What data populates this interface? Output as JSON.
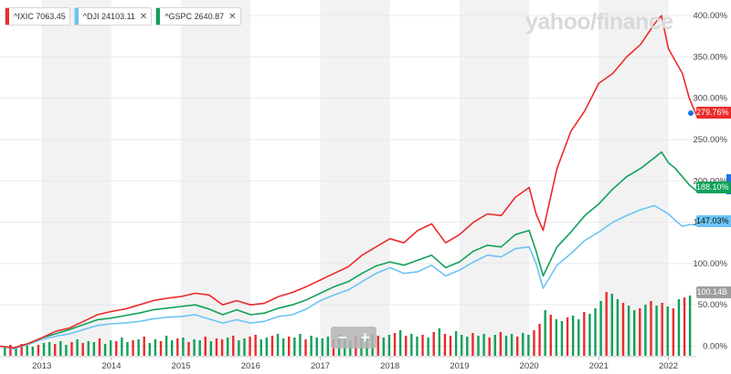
{
  "legend": [
    {
      "symbol": "^IXIC",
      "value": "7063.45",
      "color": "#ec2b2b",
      "close_icon": "close-icon"
    },
    {
      "symbol": "^DJI",
      "value": "24103.11",
      "color": "#6cc4f5",
      "close_icon": "close-icon"
    },
    {
      "symbol": "^GSPC",
      "value": "2640.87",
      "color": "#0fa15a",
      "close_icon": "close-icon"
    }
  ],
  "brand": "yahoo/finance",
  "zoom": {
    "minus": "−",
    "plus": "+"
  },
  "colors": {
    "ixic": "#ec2b2b",
    "dji": "#6cc4f5",
    "gspc": "#0fa15a",
    "vol_up": "#0fa15a",
    "vol_down": "#ec2b2b",
    "band": "#f2f2f2",
    "grid": "#e9e9e9"
  },
  "flags": {
    "ixic": {
      "text": "279.76%",
      "bg": "#ec2b2b",
      "fg": "#ffffff"
    },
    "gspc": {
      "text": "188.10%",
      "bg": "#0fa15a",
      "fg": "#ffffff"
    },
    "dji": {
      "text": "147.03%",
      "bg": "#6cc4f5",
      "fg": "#111111"
    },
    "volume": {
      "text": "100.14B",
      "bg": "#9e9e9e",
      "fg": "#ffffff"
    }
  },
  "chart_data": {
    "type": "line",
    "title": "",
    "y_unit": "% change",
    "ylim": [
      -5,
      410
    ],
    "y_ticks": [
      0,
      50,
      100,
      150,
      200,
      250,
      300,
      350,
      400
    ],
    "y_tick_labels": [
      "0.00%",
      "50.00%",
      "100.00%",
      "150.00%",
      "200.00%",
      "250.00%",
      "300.00%",
      "350.00%",
      "400.00%"
    ],
    "x_tick_labels": [
      "2013",
      "2014",
      "2015",
      "2016",
      "2017",
      "2018",
      "2019",
      "2020",
      "2021",
      "2022"
    ],
    "x_tick_years": [
      2013,
      2014,
      2015,
      2016,
      2017,
      2018,
      2019,
      2020,
      2021,
      2022
    ],
    "xlim": [
      2012.4,
      2022.4
    ],
    "shaded_year_bands": true,
    "grid": true,
    "series": [
      {
        "name": "^IXIC",
        "x": [
          2012.4,
          2012.6,
          2012.8,
          2013.0,
          2013.2,
          2013.4,
          2013.6,
          2013.8,
          2014.0,
          2014.2,
          2014.4,
          2014.6,
          2014.8,
          2015.0,
          2015.2,
          2015.4,
          2015.6,
          2015.8,
          2016.0,
          2016.2,
          2016.4,
          2016.6,
          2016.8,
          2017.0,
          2017.2,
          2017.4,
          2017.6,
          2017.8,
          2018.0,
          2018.2,
          2018.4,
          2018.6,
          2018.8,
          2019.0,
          2019.2,
          2019.4,
          2019.6,
          2019.8,
          2020.0,
          2020.1,
          2020.2,
          2020.4,
          2020.6,
          2020.8,
          2021.0,
          2021.2,
          2021.4,
          2021.6,
          2021.8,
          2021.9,
          2022.0,
          2022.1,
          2022.2,
          2022.3,
          2022.4
        ],
        "values": [
          0,
          -2,
          3,
          10,
          18,
          22,
          30,
          38,
          42,
          45,
          50,
          55,
          58,
          60,
          64,
          62,
          50,
          55,
          50,
          52,
          60,
          65,
          72,
          80,
          88,
          96,
          110,
          120,
          130,
          125,
          140,
          148,
          125,
          135,
          150,
          160,
          158,
          180,
          192,
          160,
          140,
          215,
          260,
          285,
          318,
          330,
          350,
          365,
          390,
          400,
          360,
          345,
          330,
          300,
          280
        ]
      },
      {
        "name": "^DJI",
        "x": [
          2012.4,
          2012.6,
          2012.8,
          2013.0,
          2013.2,
          2013.4,
          2013.6,
          2013.8,
          2014.0,
          2014.2,
          2014.4,
          2014.6,
          2014.8,
          2015.0,
          2015.2,
          2015.4,
          2015.6,
          2015.8,
          2016.0,
          2016.2,
          2016.4,
          2016.6,
          2016.8,
          2017.0,
          2017.2,
          2017.4,
          2017.6,
          2017.8,
          2018.0,
          2018.2,
          2018.4,
          2018.6,
          2018.8,
          2019.0,
          2019.2,
          2019.4,
          2019.6,
          2019.8,
          2020.0,
          2020.1,
          2020.2,
          2020.4,
          2020.6,
          2020.8,
          2021.0,
          2021.2,
          2021.4,
          2021.6,
          2021.8,
          2021.9,
          2022.0,
          2022.1,
          2022.2,
          2022.3,
          2022.4
        ],
        "values": [
          0,
          -3,
          2,
          8,
          12,
          15,
          20,
          25,
          27,
          28,
          30,
          33,
          35,
          36,
          38,
          33,
          28,
          32,
          28,
          30,
          36,
          38,
          45,
          55,
          62,
          68,
          78,
          88,
          95,
          88,
          90,
          98,
          85,
          92,
          102,
          110,
          108,
          118,
          120,
          100,
          70,
          98,
          112,
          128,
          138,
          150,
          158,
          165,
          170,
          165,
          160,
          152,
          145,
          147,
          147
        ]
      },
      {
        "name": "^GSPC",
        "x": [
          2012.4,
          2012.6,
          2012.8,
          2013.0,
          2013.2,
          2013.4,
          2013.6,
          2013.8,
          2014.0,
          2014.2,
          2014.4,
          2014.6,
          2014.8,
          2015.0,
          2015.2,
          2015.4,
          2015.6,
          2015.8,
          2016.0,
          2016.2,
          2016.4,
          2016.6,
          2016.8,
          2017.0,
          2017.2,
          2017.4,
          2017.6,
          2017.8,
          2018.0,
          2018.2,
          2018.4,
          2018.6,
          2018.8,
          2019.0,
          2019.2,
          2019.4,
          2019.6,
          2019.8,
          2020.0,
          2020.1,
          2020.2,
          2020.4,
          2020.6,
          2020.8,
          2021.0,
          2021.2,
          2021.4,
          2021.6,
          2021.8,
          2021.9,
          2022.0,
          2022.1,
          2022.2,
          2022.3,
          2022.4
        ],
        "values": [
          0,
          -2,
          3,
          10,
          15,
          20,
          26,
          32,
          34,
          37,
          40,
          44,
          46,
          48,
          50,
          45,
          38,
          44,
          38,
          40,
          46,
          50,
          56,
          64,
          72,
          78,
          88,
          97,
          102,
          98,
          104,
          110,
          95,
          102,
          115,
          122,
          120,
          135,
          140,
          115,
          85,
          120,
          138,
          158,
          172,
          190,
          205,
          215,
          228,
          235,
          222,
          215,
          205,
          195,
          188
        ]
      }
    ],
    "volume": {
      "name": "Volume",
      "x": [
        2012.47,
        2012.55,
        2012.63,
        2012.71,
        2012.79,
        2012.87,
        2012.95,
        2013.03,
        2013.11,
        2013.19,
        2013.27,
        2013.35,
        2013.43,
        2013.51,
        2013.59,
        2013.67,
        2013.75,
        2013.83,
        2013.91,
        2013.99,
        2014.07,
        2014.15,
        2014.23,
        2014.31,
        2014.39,
        2014.47,
        2014.55,
        2014.63,
        2014.71,
        2014.79,
        2014.87,
        2014.95,
        2015.03,
        2015.11,
        2015.19,
        2015.27,
        2015.35,
        2015.43,
        2015.51,
        2015.59,
        2015.67,
        2015.75,
        2015.83,
        2015.91,
        2015.99,
        2016.07,
        2016.15,
        2016.23,
        2016.31,
        2016.39,
        2016.47,
        2016.55,
        2016.63,
        2016.71,
        2016.79,
        2016.87,
        2016.95,
        2017.03,
        2017.11,
        2017.19,
        2017.27,
        2017.35,
        2017.43,
        2017.51,
        2017.59,
        2017.67,
        2017.75,
        2017.83,
        2017.91,
        2017.99,
        2018.07,
        2018.15,
        2018.23,
        2018.31,
        2018.39,
        2018.47,
        2018.55,
        2018.63,
        2018.71,
        2018.79,
        2018.87,
        2018.95,
        2019.03,
        2019.11,
        2019.19,
        2019.27,
        2019.35,
        2019.43,
        2019.51,
        2019.59,
        2019.67,
        2019.75,
        2019.83,
        2019.91,
        2019.99,
        2020.07,
        2020.15,
        2020.23,
        2020.31,
        2020.39,
        2020.47,
        2020.55,
        2020.63,
        2020.71,
        2020.79,
        2020.87,
        2020.95,
        2021.03,
        2021.11,
        2021.19,
        2021.27,
        2021.35,
        2021.43,
        2021.51,
        2021.59,
        2021.67,
        2021.75,
        2021.83,
        2021.91,
        2021.99,
        2022.07,
        2022.15,
        2022.23,
        2022.31
      ],
      "values": [
        10,
        12,
        9,
        13,
        11,
        10,
        12,
        14,
        15,
        13,
        16,
        12,
        15,
        18,
        14,
        16,
        15,
        19,
        13,
        17,
        16,
        20,
        15,
        17,
        18,
        21,
        14,
        18,
        16,
        22,
        17,
        19,
        20,
        15,
        18,
        17,
        21,
        16,
        19,
        18,
        20,
        22,
        17,
        19,
        21,
        23,
        18,
        20,
        22,
        24,
        19,
        21,
        20,
        24,
        18,
        22,
        20,
        19,
        21,
        18,
        23,
        20,
        17,
        22,
        21,
        19,
        24,
        22,
        20,
        23,
        25,
        28,
        22,
        24,
        21,
        23,
        20,
        26,
        30,
        24,
        22,
        27,
        23,
        21,
        25,
        22,
        24,
        20,
        23,
        26,
        22,
        24,
        21,
        25,
        23,
        28,
        35,
        50,
        45,
        40,
        38,
        42,
        44,
        40,
        48,
        46,
        52,
        60,
        70,
        68,
        62,
        58,
        55,
        50,
        52,
        56,
        60,
        55,
        58,
        54,
        52,
        62,
        64,
        66
      ],
      "up": [
        true,
        false,
        true,
        false,
        true,
        true,
        false,
        true,
        true,
        false,
        true,
        true,
        false,
        true,
        false,
        true,
        true,
        false,
        true,
        true,
        false,
        true,
        true,
        false,
        true,
        false,
        true,
        true,
        false,
        true,
        true,
        false,
        true,
        false,
        true,
        true,
        false,
        true,
        false,
        false,
        true,
        false,
        true,
        true,
        false,
        false,
        true,
        true,
        false,
        true,
        true,
        false,
        true,
        true,
        false,
        true,
        true,
        true,
        true,
        false,
        true,
        true,
        true,
        false,
        true,
        true,
        true,
        false,
        true,
        true,
        false,
        true,
        false,
        true,
        true,
        false,
        true,
        false,
        true,
        false,
        false,
        true,
        true,
        true,
        false,
        true,
        true,
        false,
        true,
        false,
        true,
        true,
        false,
        true,
        true,
        false,
        false,
        true,
        false,
        true,
        true,
        false,
        true,
        true,
        false,
        true,
        true,
        true,
        false,
        true,
        true,
        false,
        true,
        true,
        false,
        true,
        false,
        true,
        false,
        true,
        false,
        true,
        false,
        true
      ],
      "ylim": [
        0,
        100
      ],
      "last_label": "100.14B"
    }
  }
}
